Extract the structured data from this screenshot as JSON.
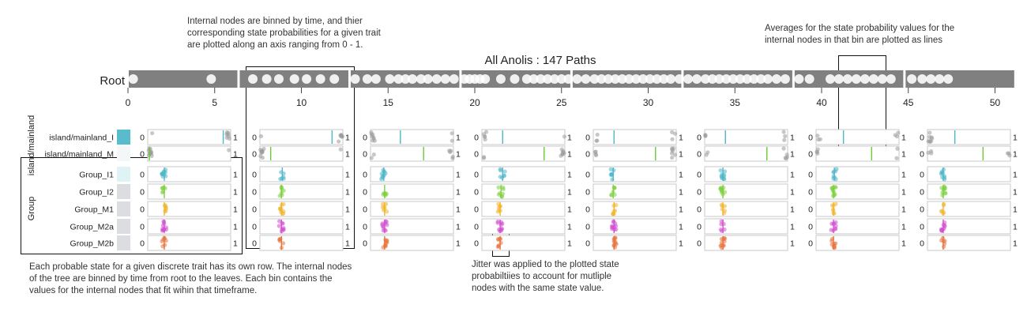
{
  "annotations": {
    "top_left": "Internal nodes are binned by time, and thier\ncorresponding state probabilities for a given trait\nare plotted along an axis ranging from 0 - 1.",
    "top_right": "Averages for the state probability values for the\ninternal nodes in that bin are plotted as lines",
    "bottom_left": "Each probable state for a given discrete trait has its own row. The internal nodes\nof the tree are binned by time from root to the leaves. Each bin contains the\nvalues for the internal nodes that fit wihin that timeframe.",
    "bottom_center": "Jitter was applied to the plotted state\nprobabiltiies to account for mutliple\nnodes with the same state value."
  },
  "chart_data": {
    "type": "scatter",
    "title": "All Anolis : 147 Paths",
    "timeline_label": "Root",
    "time_axis": {
      "min": 0,
      "max": 52,
      "ticks": [
        0,
        5,
        10,
        15,
        20,
        25,
        30,
        35,
        40,
        45,
        50
      ],
      "tick_labels": [
        "0",
        "5",
        "10",
        "15",
        "20",
        "25",
        "30",
        "35",
        "40",
        "45",
        "50"
      ]
    },
    "bins": [
      {
        "start": 0,
        "end": 6.4
      },
      {
        "start": 6.4,
        "end": 12.8
      },
      {
        "start": 12.8,
        "end": 19.2
      },
      {
        "start": 19.2,
        "end": 25.6
      },
      {
        "start": 25.6,
        "end": 32.0
      },
      {
        "start": 32.0,
        "end": 38.4
      },
      {
        "start": 38.4,
        "end": 44.8
      },
      {
        "start": 44.8,
        "end": 51.2
      }
    ],
    "node_times": [
      0.3,
      4.8,
      7.2,
      8.0,
      8.7,
      9.6,
      10.3,
      11.1,
      11.9,
      13.1,
      13.8,
      14.3,
      15.1,
      15.6,
      16.0,
      16.4,
      16.9,
      17.3,
      17.8,
      18.3,
      18.8,
      19.4,
      19.7,
      20.0,
      20.3,
      20.6,
      21.5,
      22.3,
      23.0,
      23.4,
      23.8,
      24.2,
      24.6,
      25.0,
      25.4,
      25.9,
      26.4,
      26.9,
      27.3,
      27.7,
      28.1,
      28.5,
      28.9,
      29.3,
      29.7,
      30.1,
      30.5,
      30.9,
      31.3,
      31.8,
      32.3,
      32.8,
      33.3,
      33.7,
      34.1,
      34.5,
      34.9,
      35.3,
      35.7,
      36.1,
      36.5,
      36.9,
      37.4,
      37.9,
      38.7,
      39.3,
      40.5,
      41.0,
      41.5,
      42.0,
      42.5,
      43.0,
      43.5,
      44.0,
      45.2,
      45.8,
      46.3,
      46.8,
      47.3
    ],
    "axis_range": [
      0,
      1
    ],
    "axis_end_labels": [
      "0",
      "1"
    ],
    "traits": [
      {
        "name": "island/mainland",
        "states": [
          {
            "label": "island/mainland_I",
            "color": "#4db6c8",
            "swatch": "#59bccd",
            "bin_means": [
              0.91,
              0.87,
              0.36,
              0.25,
              0.25,
              0.25,
              0.33,
              0.33
            ]
          },
          {
            "label": "island/mainland_M",
            "color": "#66cc33",
            "swatch": "#f4f7f8",
            "bin_means": [
              0.02,
              0.13,
              0.64,
              0.75,
              0.75,
              0.75,
              0.67,
              0.67
            ]
          }
        ]
      },
      {
        "name": "Group",
        "states": [
          {
            "label": "Group_I1",
            "color": "#4db6c8",
            "swatch": "#dff2f6",
            "bin_means": [
              0.2,
              0.27,
              0.16,
              0.25,
              0.24,
              0.22,
              0.22,
              0.19
            ]
          },
          {
            "label": "Group_I2",
            "color": "#7dcf3e",
            "swatch": "#dcdde0",
            "bin_means": [
              0.2,
              0.26,
              0.17,
              0.23,
              0.24,
              0.22,
              0.21,
              0.19
            ]
          },
          {
            "label": "Group_M1",
            "color": "#f0b429",
            "swatch": "#dcdde0",
            "bin_means": [
              0.2,
              0.26,
              0.17,
              0.22,
              0.25,
              0.22,
              0.21,
              0.19
            ]
          },
          {
            "label": "Group_M2a",
            "color": "#d24fd0",
            "swatch": "#dcdde0",
            "bin_means": [
              0.2,
              0.26,
              0.17,
              0.22,
              0.25,
              0.22,
              0.21,
              0.19
            ]
          },
          {
            "label": "Group_M2b",
            "color": "#e8733c",
            "swatch": "#dcdde0",
            "bin_means": [
              0.2,
              0.26,
              0.17,
              0.22,
              0.25,
              0.22,
              0.21,
              0.19
            ]
          }
        ]
      }
    ],
    "point_color": "#9a9a9a"
  }
}
